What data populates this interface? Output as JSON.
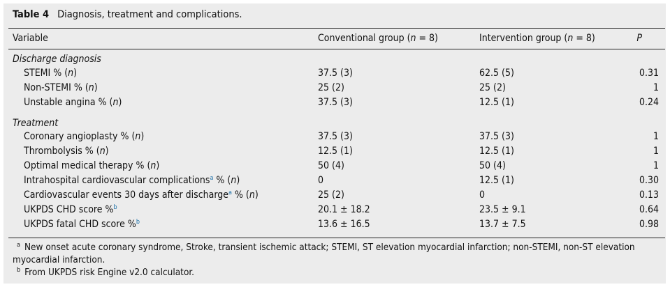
{
  "caption": {
    "label": "Table 4",
    "title": "Diagnosis, treatment and complications."
  },
  "header": [
    [
      {
        "t": "Variable"
      }
    ],
    [
      {
        "t": "Conventional group ("
      },
      {
        "t": "n",
        "i": true
      },
      {
        "t": " = 8)"
      }
    ],
    [
      {
        "t": "Intervention group ("
      },
      {
        "t": "n",
        "i": true
      },
      {
        "t": " = 8)"
      }
    ],
    [
      {
        "t": "P",
        "i": true
      }
    ]
  ],
  "sections": [
    {
      "title": "Discharge diagnosis",
      "rows": [
        {
          "label": [
            {
              "t": "STEMI % ("
            },
            {
              "t": "n",
              "i": true
            },
            {
              "t": ")"
            }
          ],
          "conventional": "37.5 (3)",
          "intervention": "62.5 (5)",
          "p": "0.31"
        },
        {
          "label": [
            {
              "t": "Non-STEMI % ("
            },
            {
              "t": "n",
              "i": true
            },
            {
              "t": ")"
            }
          ],
          "conventional": "25 (2)",
          "intervention": "25 (2)",
          "p": "1"
        },
        {
          "label": [
            {
              "t": "Unstable angina % ("
            },
            {
              "t": "n",
              "i": true
            },
            {
              "t": ")"
            }
          ],
          "conventional": "37.5 (3)",
          "intervention": "12.5 (1)",
          "p": "0.24"
        }
      ]
    },
    {
      "title": "Treatment",
      "rows": [
        {
          "label": [
            {
              "t": "Coronary angioplasty % ("
            },
            {
              "t": "n",
              "i": true
            },
            {
              "t": ")"
            }
          ],
          "conventional": "37.5 (3)",
          "intervention": "37.5 (3)",
          "p": "1"
        },
        {
          "label": [
            {
              "t": "Thrombolysis % ("
            },
            {
              "t": "n",
              "i": true
            },
            {
              "t": ")"
            }
          ],
          "conventional": "12.5 (1)",
          "intervention": "12.5 (1)",
          "p": "1"
        },
        {
          "label": [
            {
              "t": "Optimal medical therapy % ("
            },
            {
              "t": "n",
              "i": true
            },
            {
              "t": ")"
            }
          ],
          "conventional": "50 (4)",
          "intervention": "50 (4)",
          "p": "1"
        },
        {
          "label": [
            {
              "t": "Intrahospital cardiovascular complications"
            },
            {
              "t": "a",
              "sup": true
            },
            {
              "t": " % ("
            },
            {
              "t": "n",
              "i": true
            },
            {
              "t": ")"
            }
          ],
          "conventional": "0",
          "intervention": "12.5 (1)",
          "p": "0.30"
        },
        {
          "label": [
            {
              "t": "Cardiovascular events 30 days after discharge"
            },
            {
              "t": "a",
              "sup": true
            },
            {
              "t": " % ("
            },
            {
              "t": "n",
              "i": true
            },
            {
              "t": ")"
            }
          ],
          "conventional": "25 (2)",
          "intervention": "0",
          "p": "0.13"
        },
        {
          "label": [
            {
              "t": "UKPDS CHD score %"
            },
            {
              "t": "b",
              "sup": true
            }
          ],
          "conventional": "20.1 ± 18.2",
          "intervention": "23.5 ± 9.1",
          "p": "0.64"
        },
        {
          "label": [
            {
              "t": "UKPDS fatal CHD score %"
            },
            {
              "t": "b",
              "sup": true
            }
          ],
          "conventional": "13.6 ± 16.5",
          "intervention": "13.7 ± 7.5",
          "p": "0.98"
        }
      ]
    }
  ],
  "footnotes": [
    {
      "mark": "a",
      "text": "New onset acute coronary syndrome, Stroke, transient ischemic attack; STEMI, ST elevation myocardial infarction; non-STEMI, non-ST elevation myocardial infarction."
    },
    {
      "mark": "b",
      "text": "From UKPDS risk Engine v2.0 calculator."
    }
  ]
}
